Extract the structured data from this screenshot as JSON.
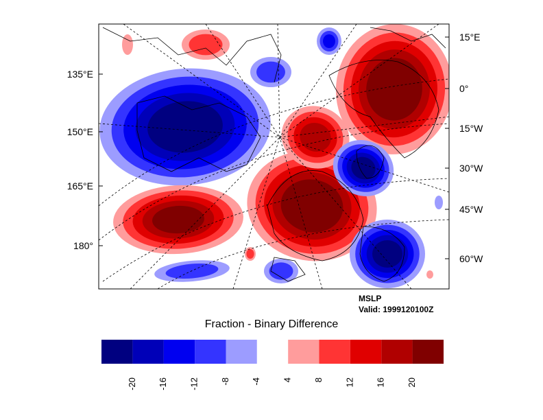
{
  "map": {
    "left_axis_labels": [
      "135°E",
      "150°E",
      "165°E",
      "180°"
    ],
    "right_axis_labels": [
      "15°E",
      "0°",
      "15°W",
      "30°W",
      "45°W",
      "60°W"
    ],
    "annotation": {
      "field": "MSLP",
      "valid": "Valid: 1999120100Z"
    }
  },
  "colorbar": {
    "title": "Fraction - Binary Difference",
    "colors": [
      "#000080",
      "#0000B8",
      "#0000F0",
      "#3434FF",
      "#9C9CFF",
      "#FFFFFF",
      "#FF9C9C",
      "#FF3434",
      "#E00000",
      "#B00000",
      "#800000"
    ],
    "tick_labels": [
      "-20",
      "-16",
      "-12",
      "-8",
      "-4",
      "4",
      "8",
      "12",
      "16",
      "20"
    ]
  },
  "colors": {
    "blue_levels": [
      "#9C9CFF",
      "#3434FF",
      "#0000F0",
      "#0000B8",
      "#000080"
    ],
    "red_levels": [
      "#FF9C9C",
      "#FF3434",
      "#E00000",
      "#B00000",
      "#800000"
    ]
  }
}
